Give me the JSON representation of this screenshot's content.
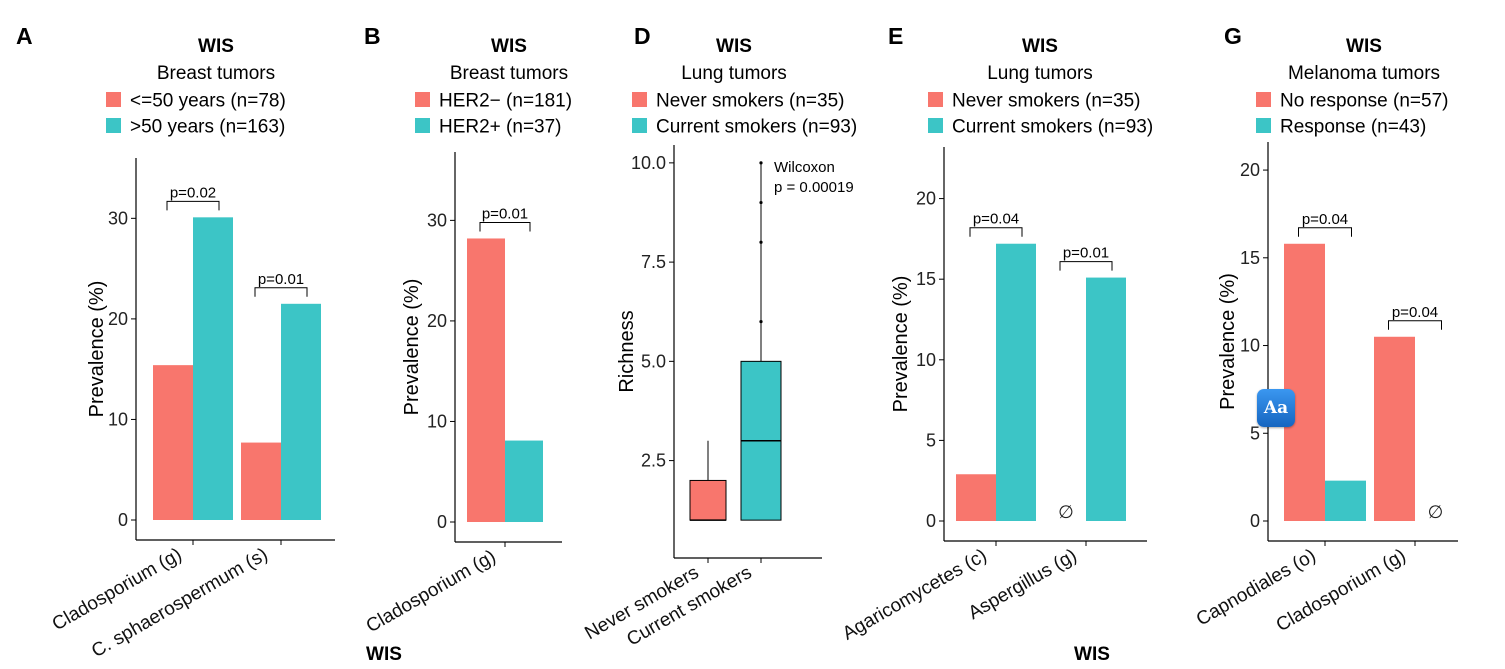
{
  "colors": {
    "red": "#F8766D",
    "teal": "#3CC5C6",
    "axis": "#000000"
  },
  "footer_labels": [
    "WIS",
    "WIS"
  ],
  "overlay_icon": {
    "name": "dictionary-app-icon",
    "label": "Aa"
  },
  "chart_data": [
    {
      "letter": "A",
      "type": "bar",
      "title": "WIS",
      "subtitle": "Breast tumors",
      "legend": [
        {
          "label": "<=50 years (n=78)",
          "color": "#F8766D"
        },
        {
          "label": ">50 years (n=163)",
          "color": "#3CC5C6"
        }
      ],
      "ylabel": "Prevalence (%)",
      "ylim": [
        0,
        36
      ],
      "yticks": [
        0,
        10,
        20,
        30
      ],
      "categories": [
        "Cladosporium (g)",
        "C. sphaerospermum (s)"
      ],
      "series": [
        {
          "name": "<=50 years (n=78)",
          "values": [
            15.4,
            7.7
          ]
        },
        {
          "name": ">50 years (n=163)",
          "values": [
            30.1,
            21.5
          ]
        }
      ],
      "annotations": [
        {
          "category": 0,
          "text": "p=0.02"
        },
        {
          "category": 1,
          "text": "p=0.01"
        }
      ]
    },
    {
      "letter": "B",
      "type": "bar",
      "title": "WIS",
      "subtitle": "Breast tumors",
      "legend": [
        {
          "label": "HER2− (n=181)",
          "color": "#F8766D"
        },
        {
          "label": "HER2+ (n=37)",
          "color": "#3CC5C6"
        }
      ],
      "ylabel": "Prevalence (%)",
      "ylim": [
        0,
        36.8
      ],
      "yticks": [
        0,
        10,
        20,
        30
      ],
      "categories": [
        "Cladosporium (g)"
      ],
      "series": [
        {
          "name": "HER2− (n=181)",
          "values": [
            28.2
          ]
        },
        {
          "name": "HER2+ (n=37)",
          "values": [
            8.1
          ]
        }
      ],
      "annotations": [
        {
          "category": 0,
          "text": "p=0.01"
        }
      ]
    },
    {
      "letter": "D",
      "type": "box",
      "title": "WIS",
      "subtitle": "Lung tumors",
      "legend": [
        {
          "label": "Never smokers (n=35)",
          "color": "#F8766D"
        },
        {
          "label": "Current smokers (n=93)",
          "color": "#3CC5C6"
        }
      ],
      "ylabel": "Richness",
      "ylim": [
        0.55,
        10.45
      ],
      "yticks": [
        2.5,
        5.0,
        7.5,
        10.0
      ],
      "categories": [
        "Never smokers",
        "Current smokers"
      ],
      "boxes": [
        {
          "min": 1,
          "q1": 1,
          "median": 1,
          "q3": 2,
          "max": 3,
          "outliers": []
        },
        {
          "min": 1,
          "q1": 1,
          "median": 3,
          "q3": 5,
          "max": 10,
          "outliers": [
            6,
            8,
            9,
            10
          ]
        }
      ],
      "test": {
        "name": "Wilcoxon",
        "p": "p = 0.00019"
      }
    },
    {
      "letter": "E",
      "type": "bar",
      "title": "WIS",
      "subtitle": "Lung tumors",
      "legend": [
        {
          "label": "Never smokers (n=35)",
          "color": "#F8766D"
        },
        {
          "label": "Current smokers (n=93)",
          "color": "#3CC5C6"
        }
      ],
      "ylabel": "Prevalence (%)",
      "ylim": [
        0,
        23.2
      ],
      "yticks": [
        0,
        5,
        10,
        15,
        20
      ],
      "categories": [
        "Agaricomycetes (c)",
        "Aspergillus (g)"
      ],
      "series": [
        {
          "name": "Never smokers (n=35)",
          "values": [
            2.9,
            0
          ]
        },
        {
          "name": "Current smokers (n=93)",
          "values": [
            17.2,
            15.1
          ]
        }
      ],
      "empty_marker": "∅",
      "empty": [
        {
          "category": 1,
          "series": 0
        }
      ],
      "annotations": [
        {
          "category": 0,
          "text": "p=0.04"
        },
        {
          "category": 1,
          "text": "p=0.01"
        }
      ]
    },
    {
      "letter": "G",
      "type": "bar",
      "title": "WIS",
      "subtitle": "Melanoma tumors",
      "legend": [
        {
          "label": "No response (n=57)",
          "color": "#F8766D"
        },
        {
          "label": "Response (n=43)",
          "color": "#3CC5C6"
        }
      ],
      "ylabel": "Prevalence (%)",
      "ylim": [
        0,
        21.6
      ],
      "yticks": [
        0,
        5,
        10,
        15,
        20
      ],
      "categories": [
        "Capnodiales (o)",
        "Cladosporium (g)"
      ],
      "series": [
        {
          "name": "No response (n=57)",
          "values": [
            15.8,
            10.5
          ]
        },
        {
          "name": "Response (n=43)",
          "values": [
            2.3,
            0
          ]
        }
      ],
      "empty_marker": "∅",
      "empty": [
        {
          "category": 1,
          "series": 1
        }
      ],
      "annotations": [
        {
          "category": 0,
          "text": "p=0.04"
        },
        {
          "category": 1,
          "text": "p=0.04"
        }
      ]
    }
  ]
}
